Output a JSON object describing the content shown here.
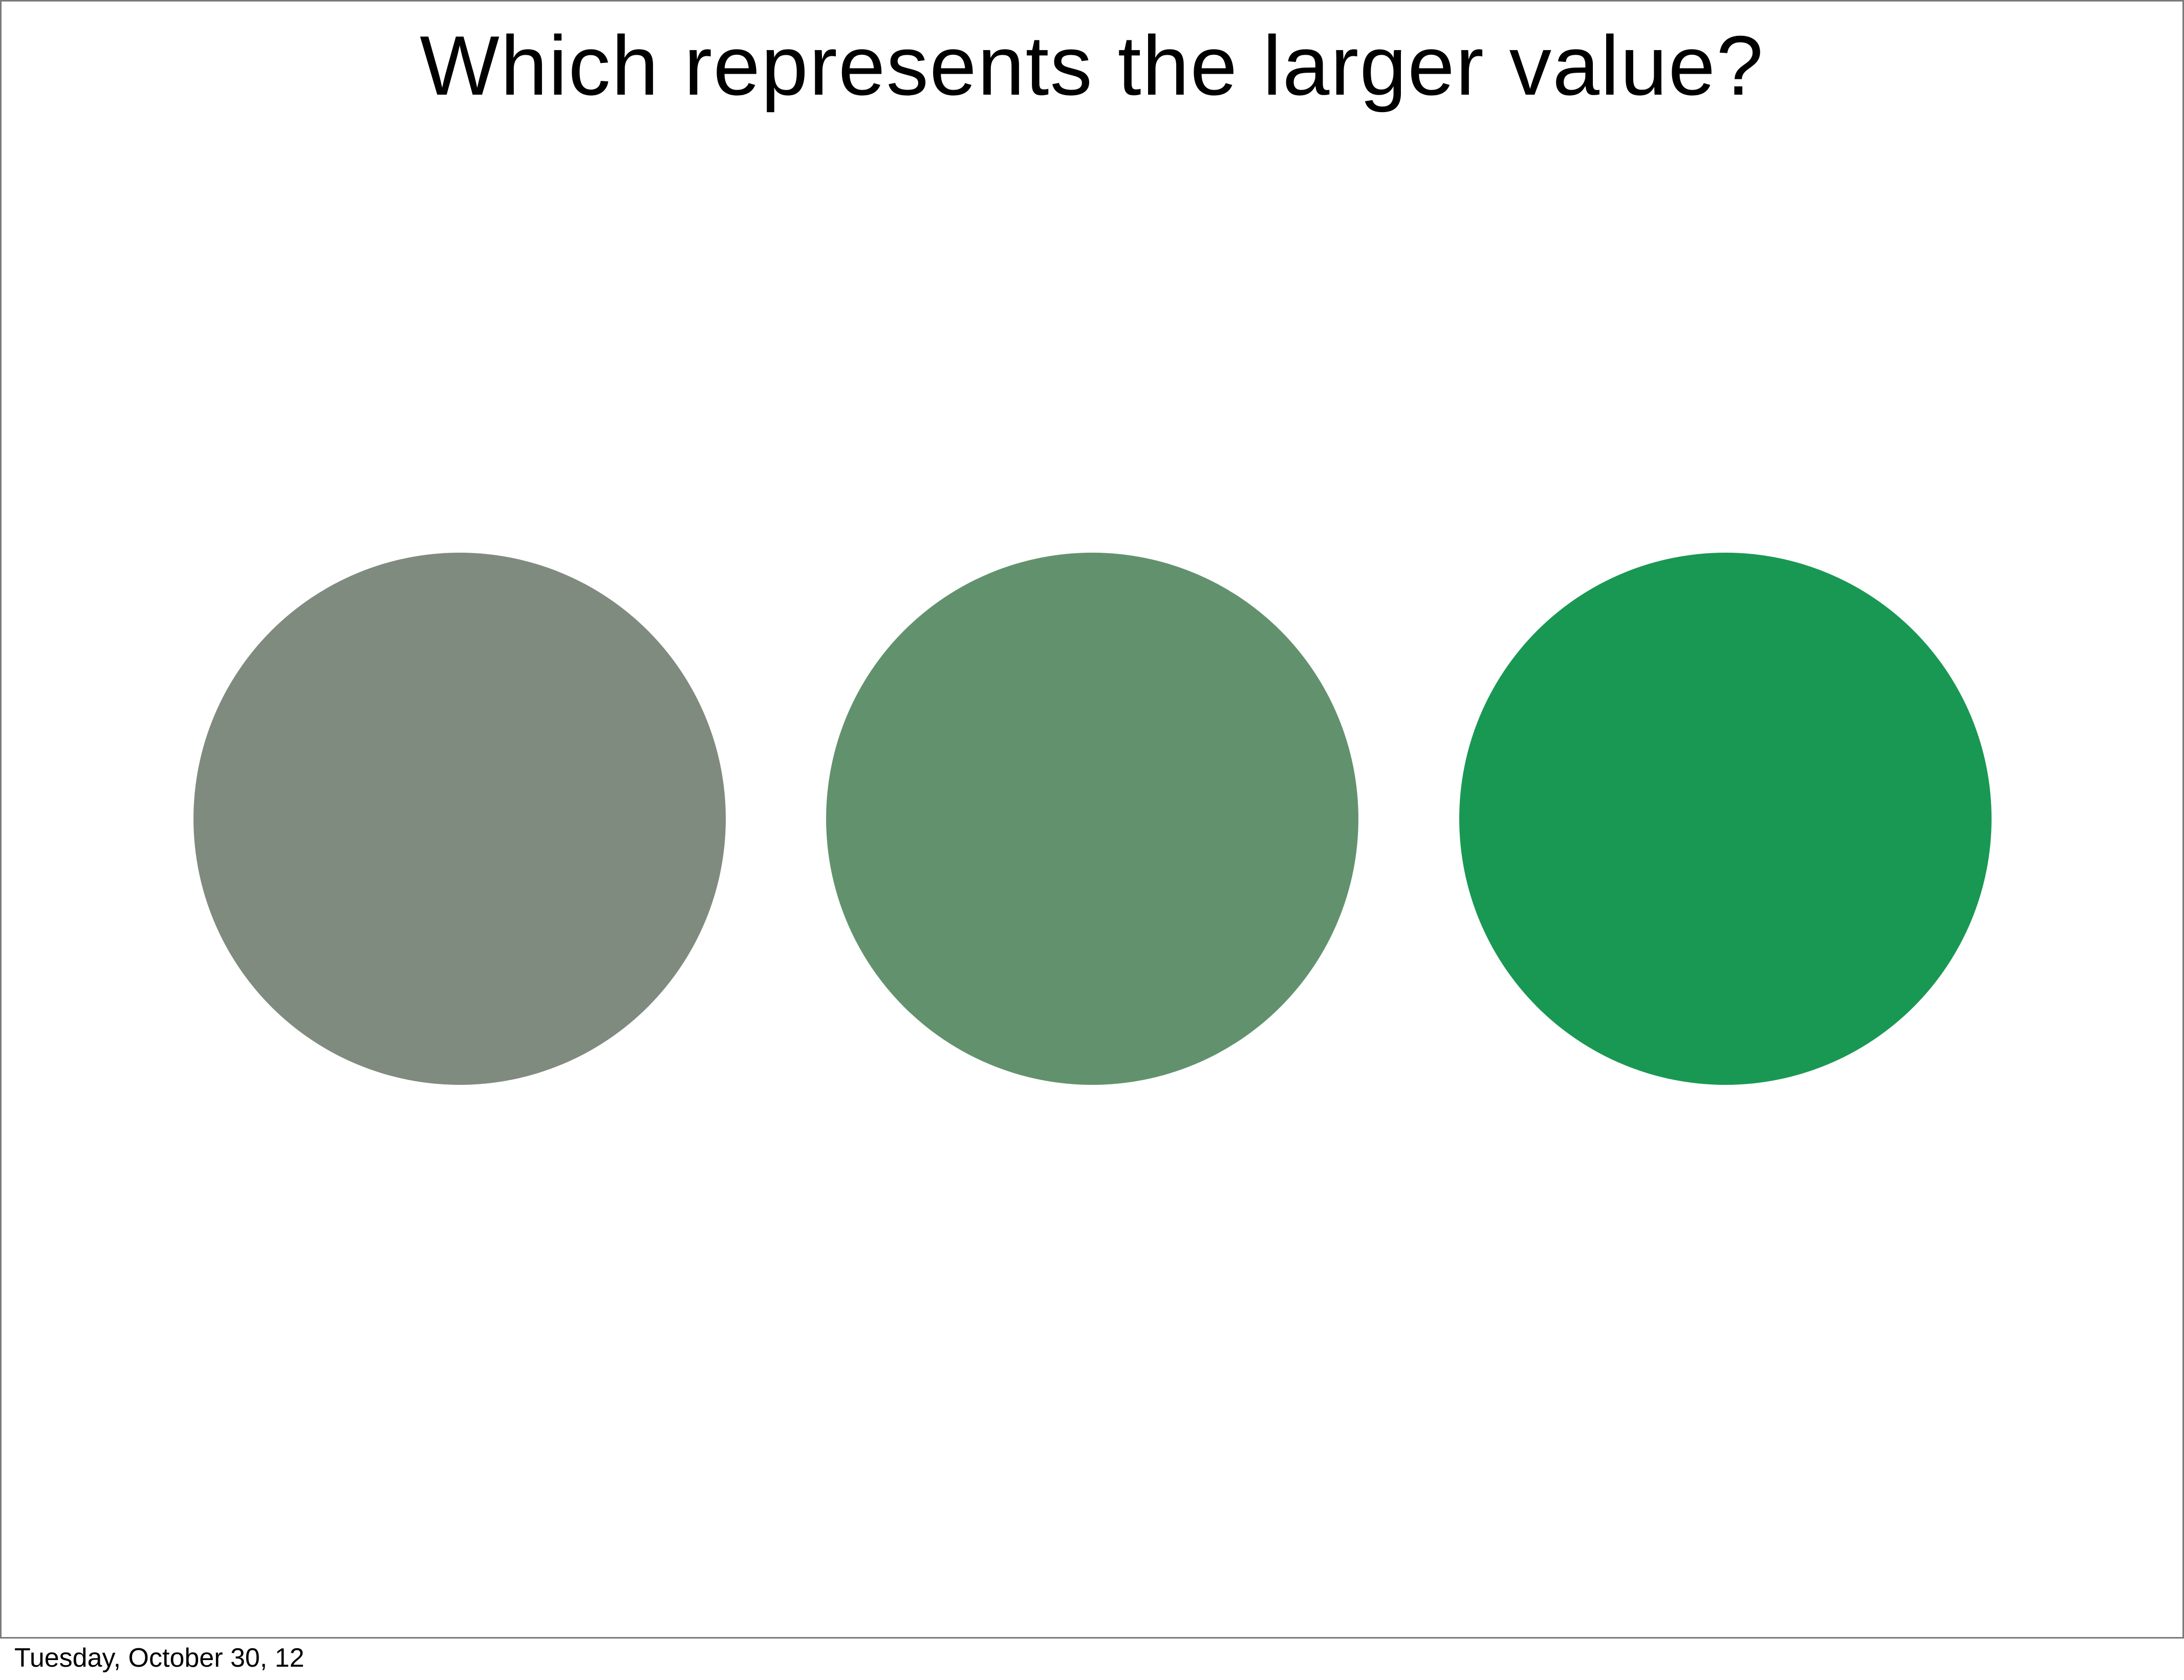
{
  "slide": {
    "title": "Which represents the larger value?",
    "circles": [
      {
        "color": "#808B7F"
      },
      {
        "color": "#62926D"
      },
      {
        "color": "#199853"
      }
    ]
  },
  "footer": {
    "date": "Tuesday, October 30, 12"
  }
}
